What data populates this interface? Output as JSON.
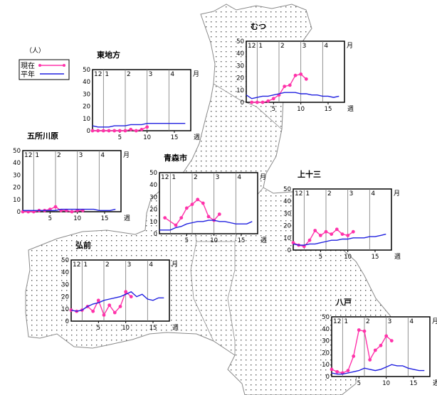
{
  "colors": {
    "current": "#ff33aa",
    "normal": "#2020e0",
    "map_dots": "#555555",
    "map_outline": "#8a8a8a"
  },
  "legend": {
    "unit": "（人）",
    "current_label": "現在",
    "normal_label": "平年"
  },
  "chart_data": [
    {
      "type": "line",
      "title": "むつ",
      "month_labels": [
        "12",
        "1",
        "2",
        "3",
        "4"
      ],
      "month_unit": "月",
      "week_unit": "週",
      "y_ticks": [
        0,
        10,
        20,
        30,
        40,
        50
      ],
      "x_ticks": [
        5,
        10,
        15
      ],
      "ylim": [
        0,
        50
      ],
      "series": [
        {
          "name": "現在",
          "x": [
            1,
            2,
            3,
            4,
            5,
            6,
            7,
            8,
            9,
            10,
            11
          ],
          "values": [
            0,
            0,
            0,
            1,
            3,
            6,
            13,
            14,
            22,
            23,
            19
          ]
        },
        {
          "name": "平年",
          "x": [
            0,
            1,
            2,
            3,
            4,
            5,
            6,
            7,
            8,
            9,
            10,
            11,
            12,
            13,
            14,
            15,
            16,
            17
          ],
          "values": [
            6,
            3,
            4,
            5,
            5,
            6,
            7,
            8,
            8,
            8,
            7,
            7,
            6,
            6,
            5,
            5,
            4,
            5
          ]
        }
      ]
    },
    {
      "type": "line",
      "title": "東地方",
      "month_labels": [
        "12",
        "1",
        "2",
        "3",
        "4"
      ],
      "month_unit": "月",
      "week_unit": "週",
      "y_ticks": [
        0,
        10,
        20,
        30,
        40,
        50
      ],
      "x_ticks": [
        5,
        10,
        15
      ],
      "ylim": [
        0,
        50
      ],
      "series": [
        {
          "name": "現在",
          "x": [
            0,
            1,
            2,
            3,
            4,
            5,
            6,
            7,
            8,
            9,
            10
          ],
          "values": [
            0,
            0,
            0,
            0,
            0,
            0,
            0,
            1,
            0,
            1,
            3
          ]
        },
        {
          "name": "平年",
          "x": [
            0,
            1,
            2,
            3,
            4,
            5,
            6,
            7,
            8,
            9,
            10,
            11,
            12,
            13,
            14,
            15,
            16,
            17
          ],
          "values": [
            4,
            3,
            3,
            3,
            4,
            4,
            4,
            5,
            5,
            5,
            6,
            6,
            6,
            6,
            6,
            6,
            6,
            6
          ]
        }
      ]
    },
    {
      "type": "line",
      "title": "五所川原",
      "month_labels": [
        "12",
        "1",
        "2",
        "3",
        "4"
      ],
      "month_unit": "月",
      "week_unit": "週",
      "y_ticks": [
        0,
        10,
        20,
        30,
        40,
        50
      ],
      "x_ticks": [
        5,
        10,
        15
      ],
      "ylim": [
        0,
        50
      ],
      "series": [
        {
          "name": "現在",
          "x": [
            0,
            1,
            2,
            3,
            4,
            5,
            6,
            7,
            8,
            9,
            10,
            11
          ],
          "values": [
            0,
            0,
            0,
            1,
            1,
            2,
            4,
            1,
            1,
            0,
            1,
            1
          ]
        },
        {
          "name": "平年",
          "x": [
            0,
            1,
            2,
            3,
            4,
            5,
            6,
            7,
            8,
            9,
            10,
            11,
            12,
            13,
            14,
            15,
            16,
            17
          ],
          "values": [
            1,
            1,
            1,
            1,
            1,
            1,
            1,
            2,
            2,
            2,
            2,
            2,
            2,
            2,
            1,
            1,
            1,
            2
          ]
        }
      ]
    },
    {
      "type": "line",
      "title": "青森市",
      "month_labels": [
        "12",
        "1",
        "2",
        "3",
        "4"
      ],
      "month_unit": "月",
      "week_unit": "週",
      "y_ticks": [
        0,
        10,
        20,
        30,
        40,
        50
      ],
      "x_ticks": [
        5,
        10,
        15
      ],
      "ylim": [
        0,
        50
      ],
      "series": [
        {
          "name": "現在",
          "x": [
            1,
            3,
            4,
            5,
            6,
            7,
            8,
            9,
            10,
            11
          ],
          "values": [
            13,
            7,
            13,
            21,
            24,
            28,
            25,
            14,
            11,
            16
          ]
        },
        {
          "name": "平年",
          "x": [
            0,
            1,
            2,
            3,
            4,
            5,
            6,
            7,
            8,
            9,
            10,
            11,
            12,
            13,
            14,
            15,
            16,
            17
          ],
          "values": [
            3,
            3,
            3,
            5,
            6,
            8,
            9,
            10,
            10,
            11,
            11,
            10,
            10,
            9,
            8,
            8,
            8,
            10
          ]
        }
      ]
    },
    {
      "type": "line",
      "title": "上十三",
      "month_labels": [
        "12",
        "1",
        "2",
        "3",
        "4"
      ],
      "month_unit": "月",
      "week_unit": "週",
      "y_ticks": [
        0,
        10,
        20,
        30,
        40,
        50
      ],
      "x_ticks": [
        5,
        10,
        15
      ],
      "ylim": [
        0,
        50
      ],
      "series": [
        {
          "name": "現在",
          "x": [
            0,
            1,
            2,
            3,
            4,
            5,
            6,
            7,
            8,
            9,
            10,
            11
          ],
          "values": [
            6,
            4,
            3,
            8,
            16,
            12,
            15,
            13,
            17,
            13,
            12,
            15
          ]
        },
        {
          "name": "平年",
          "x": [
            0,
            1,
            2,
            3,
            4,
            5,
            6,
            7,
            8,
            9,
            10,
            11,
            12,
            13,
            14,
            15,
            16,
            17
          ],
          "values": [
            5,
            4,
            4,
            5,
            5,
            6,
            7,
            8,
            8,
            9,
            9,
            10,
            10,
            10,
            11,
            11,
            12,
            13
          ]
        }
      ]
    },
    {
      "type": "line",
      "title": "弘前",
      "month_labels": [
        "12",
        "1",
        "2",
        "3",
        "4"
      ],
      "month_unit": "月",
      "week_unit": "週",
      "y_ticks": [
        0,
        10,
        20,
        30,
        40,
        50
      ],
      "x_ticks": [
        5,
        10,
        15
      ],
      "ylim": [
        0,
        50
      ],
      "series": [
        {
          "name": "現在",
          "x": [
            0,
            1,
            2,
            3,
            4,
            5,
            6,
            7,
            8,
            9,
            10,
            11
          ],
          "values": [
            9,
            8,
            9,
            12,
            8,
            17,
            5,
            13,
            7,
            12,
            24,
            20
          ]
        },
        {
          "name": "平年",
          "x": [
            0,
            1,
            2,
            3,
            4,
            5,
            6,
            7,
            8,
            9,
            10,
            11,
            12,
            13,
            14,
            15,
            16,
            17
          ],
          "values": [
            9,
            8,
            9,
            12,
            14,
            15,
            17,
            18,
            19,
            20,
            22,
            24,
            20,
            22,
            18,
            17,
            19,
            19
          ]
        }
      ]
    },
    {
      "type": "line",
      "title": "八戸",
      "month_labels": [
        "12",
        "1",
        "2",
        "3",
        "4"
      ],
      "month_unit": "月",
      "week_unit": "週",
      "y_ticks": [
        0,
        10,
        20,
        30,
        40,
        50
      ],
      "x_ticks": [
        5,
        10,
        15
      ],
      "ylim": [
        0,
        50
      ],
      "series": [
        {
          "name": "現在",
          "x": [
            0,
            1,
            2,
            3,
            4,
            5,
            6,
            7,
            8,
            9,
            10,
            11
          ],
          "values": [
            6,
            4,
            3,
            5,
            17,
            39,
            38,
            14,
            22,
            26,
            34,
            30
          ]
        },
        {
          "name": "平年",
          "x": [
            0,
            1,
            2,
            3,
            4,
            5,
            6,
            7,
            8,
            9,
            10,
            11,
            12,
            13,
            14,
            15,
            16,
            17
          ],
          "values": [
            3,
            2,
            2,
            3,
            4,
            5,
            7,
            6,
            5,
            6,
            8,
            10,
            9,
            9,
            7,
            6,
            5,
            5
          ]
        }
      ]
    }
  ]
}
